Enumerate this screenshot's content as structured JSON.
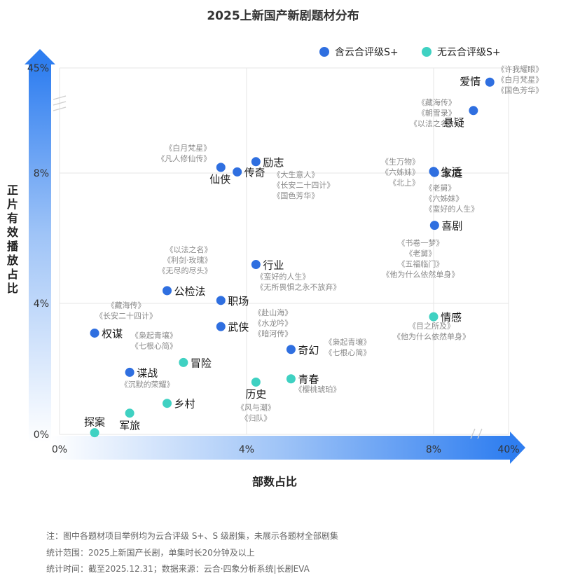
{
  "colors": {
    "blue": "#2f6fe0",
    "teal": "#3fd1c2",
    "grid": "#e6e6e6",
    "ann": "#8a8a8a"
  },
  "chart_data": {
    "type": "scatter",
    "title": "2025上新国产新剧题材分布",
    "xlabel": "部数占比",
    "ylabel": "正片有效播放占比",
    "x_ticks": [
      "0%",
      "4%",
      "8%",
      "40%"
    ],
    "y_ticks": [
      "0%",
      "4%",
      "8%",
      "45%"
    ],
    "axis_note": "Axes are broken between 8% and the top value (40% on x, 45% on y)",
    "legend": [
      {
        "name": "含云合评级S+",
        "color_key": "blue"
      },
      {
        "name": "无云合评级S+",
        "color_key": "teal"
      }
    ],
    "points": [
      {
        "label": "爱情",
        "series": "含云合评级S+",
        "x": 32,
        "y": 40,
        "examples": [
          "《许我耀眼》",
          "《白月梵星》",
          "《国色芳华》"
        ]
      },
      {
        "label": "悬疑",
        "series": "含云合评级S+",
        "x": 25,
        "y": 30,
        "examples": [
          "《藏海传》",
          "《朝雪录》",
          "《以法之名》"
        ]
      },
      {
        "label": "生活",
        "series": "含云合评级S+",
        "x": 8.0,
        "y": 8.6,
        "examples": [
          "《生万物》",
          "《六姊妹》",
          "《北上》"
        ]
      },
      {
        "label": "家庭",
        "series": "含云合评级S+",
        "x": 8.4,
        "y": 8.2,
        "examples": [
          "《老舅》",
          "《六姊妹》",
          "《蛮好的人生》"
        ]
      },
      {
        "label": "喜剧",
        "series": "含云合评级S+",
        "x": 8.4,
        "y": 6.4,
        "examples": [
          "《书卷一梦》",
          "《老舅》",
          "《五福临门》",
          "《他为什么依然单身》"
        ]
      },
      {
        "label": "励志",
        "series": "含云合评级S+",
        "x": 4.2,
        "y": 12,
        "examples": [
          "《大生意人》",
          "《长安二十四计》",
          "《国色芳华》"
        ]
      },
      {
        "label": "仙侠",
        "series": "含云合评级S+",
        "x": 3.45,
        "y": 10,
        "examples": [
          "《白月梵星》",
          "《凡人修仙传》"
        ]
      },
      {
        "label": "传奇",
        "series": "含云合评级S+",
        "x": 3.8,
        "y": 8.4,
        "examples": []
      },
      {
        "label": "行业",
        "series": "含云合评级S+",
        "x": 4.2,
        "y": 5.2,
        "examples": [
          "《蛮好的人生》",
          "《无所畏惧之永不放弃》"
        ]
      },
      {
        "label": "公检法",
        "series": "含云合评级S+",
        "x": 2.3,
        "y": 4.4,
        "examples": [
          "《以法之名》",
          "《利剑·玫瑰》",
          "《无尽的尽头》"
        ]
      },
      {
        "label": "职场",
        "series": "含云合评级S+",
        "x": 3.45,
        "y": 4.1,
        "examples": []
      },
      {
        "label": "武侠",
        "series": "含云合评级S+",
        "x": 3.45,
        "y": 3.3,
        "examples": [
          "《赴山海》",
          "《水龙吟》",
          "《暗河传》"
        ]
      },
      {
        "label": "权谋",
        "series": "含云合评级S+",
        "x": 0.75,
        "y": 3.1,
        "examples": [
          "《藏海传》",
          "《长安二十四计》"
        ]
      },
      {
        "label": "奇幻",
        "series": "含云合评级S+",
        "x": 4.95,
        "y": 2.6,
        "examples": [
          "《枭起青壤》",
          "《七根心简》"
        ]
      },
      {
        "label": "谍战",
        "series": "含云合评级S+",
        "x": 1.5,
        "y": 1.9,
        "examples": [
          "《沉默的荣耀》"
        ]
      },
      {
        "label": "情感",
        "series": "无云合评级S+",
        "x": 8.0,
        "y": 3.6,
        "examples": [
          "《目之所及》",
          "《他为什么依然单身》"
        ]
      },
      {
        "label": "冒险",
        "series": "无云合评级S+",
        "x": 2.65,
        "y": 2.2,
        "examples": [
          "《枭起青壤》",
          "《七根心简》"
        ]
      },
      {
        "label": "青春",
        "series": "无云合评级S+",
        "x": 4.95,
        "y": 1.7,
        "examples": [
          "《樱桃琥珀》"
        ]
      },
      {
        "label": "历史",
        "series": "无云合评级S+",
        "x": 4.2,
        "y": 1.6,
        "examples": [
          "《风与潮》",
          "《归队》"
        ]
      },
      {
        "label": "乡村",
        "series": "无云合评级S+",
        "x": 2.3,
        "y": 0.95,
        "examples": []
      },
      {
        "label": "军旅",
        "series": "无云合评级S+",
        "x": 1.5,
        "y": 0.65,
        "examples": []
      },
      {
        "label": "探案",
        "series": "无云合评级S+",
        "x": 0.75,
        "y": 0.05,
        "examples": []
      }
    ]
  },
  "footnotes": [
    "注：图中各题材项目举例均为云合评级 S+、S 级剧集，未展示各题材全部剧集",
    "统计范围：2025上新国产长剧，单集时长20分钟及以上",
    "统计时间：截至2025.12.31；数据来源：云合·四象分析系统|长剧EVA"
  ]
}
